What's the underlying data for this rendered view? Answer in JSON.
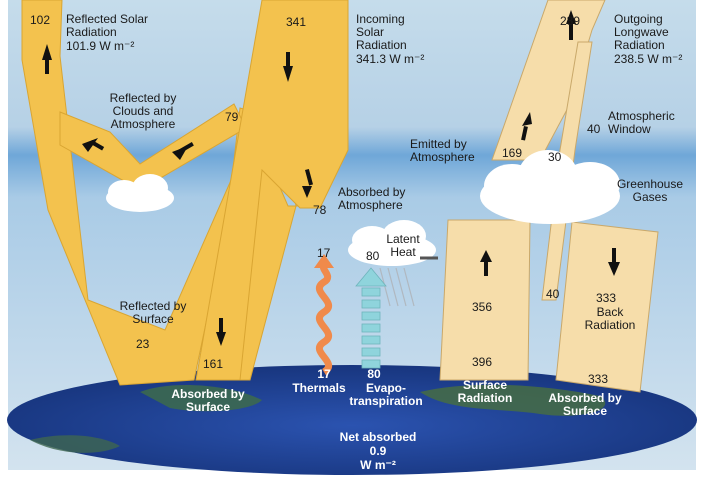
{
  "incoming": {
    "value": "341",
    "title": "Incoming\nSolar\nRadiation",
    "amount": "341.3 W m⁻²"
  },
  "reflected_solar": {
    "value": "102",
    "title": "Reflected Solar\nRadiation",
    "amount": "101.9 W m⁻²"
  },
  "reflected_clouds": {
    "label": "Reflected by\nClouds and\nAtmosphere",
    "value": "79",
    "branch_value": "79"
  },
  "reflected_surface": {
    "label": "Reflected by\nSurface",
    "value": "23"
  },
  "absorbed_atmosphere": {
    "value": "78",
    "label": "Absorbed by\nAtmosphere"
  },
  "absorbed_surface_solar": {
    "value": "161",
    "label": "Absorbed by\nSurface"
  },
  "thermals": {
    "top_value": "17",
    "bottom_value": "17",
    "label": "Thermals"
  },
  "latent": {
    "top_value": "80",
    "label": "Latent\nHeat",
    "bottom_value": "80",
    "evap_label": "Evapo-\ntranspiration"
  },
  "outgoing": {
    "value": "239",
    "title": "Outgoing\nLongwave\nRadiation",
    "amount": "238.5 W m⁻²"
  },
  "emitted_atmosphere": {
    "label": "Emitted by\nAtmosphere",
    "value": "169"
  },
  "window": {
    "label": "Atmospheric\nWindow",
    "value": "40",
    "value2": "30",
    "value3": "40"
  },
  "greenhouse": {
    "label": "Greenhouse\nGases"
  },
  "surface_radiation": {
    "value": "356",
    "bottom_value": "396",
    "label": "Surface\nRadiation"
  },
  "back_radiation": {
    "value": "333",
    "label": "Back\nRadiation",
    "bottom_value": "333",
    "absorbed_label": "Absorbed by\nSurface"
  },
  "net": {
    "label": "Net absorbed",
    "value": "0.9",
    "unit": "W m⁻²"
  },
  "colors": {
    "sky_top": "#b9d3e6",
    "sky_mid": "#7fb0db",
    "solar_band": "#f3c24e",
    "longwave_band": "#f6ddaa",
    "ocean": "#1f3f8f",
    "land": "#3a6a3e",
    "arrow": "#111111",
    "thermal": "#f08a4b",
    "latent": "#8fd4dc"
  },
  "icons": [
    "cloud-icon",
    "arrow-icon",
    "wavy-arrow-icon",
    "rain-icon",
    "earth-icon"
  ]
}
